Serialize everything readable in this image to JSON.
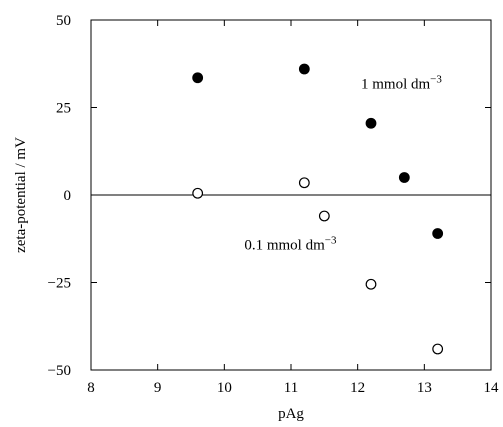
{
  "chart_data": {
    "type": "scatter",
    "title": "",
    "xlabel": "pAg",
    "ylabel": "zeta-potential / mV",
    "xlim": [
      8,
      14
    ],
    "ylim": [
      -50,
      50
    ],
    "x_ticks": [
      8,
      9,
      10,
      11,
      12,
      13,
      14
    ],
    "y_ticks": [
      -50,
      -25,
      0,
      25,
      50
    ],
    "x_tick_labels": [
      "8",
      "9",
      "10",
      "11",
      "12",
      "13",
      "14"
    ],
    "y_tick_labels": [
      "−50",
      "−25",
      "0",
      "25",
      "50"
    ],
    "zero_line": true,
    "grid": false,
    "series": [
      {
        "name": "1 mmol dm⁻³",
        "marker": "filled-circle",
        "color": "#000000",
        "points": [
          {
            "x": 9.6,
            "y": 33.5
          },
          {
            "x": 11.2,
            "y": 36
          },
          {
            "x": 12.2,
            "y": 20.5
          },
          {
            "x": 12.7,
            "y": 5
          },
          {
            "x": 13.2,
            "y": -11
          }
        ]
      },
      {
        "name": "0.1 mmol dm⁻³",
        "marker": "open-circle",
        "color": "#000000",
        "points": [
          {
            "x": 9.6,
            "y": 0.5
          },
          {
            "x": 11.2,
            "y": 3.5
          },
          {
            "x": 11.5,
            "y": -6
          },
          {
            "x": 12.2,
            "y": -25.5
          },
          {
            "x": 13.2,
            "y": -44
          }
        ]
      }
    ],
    "annotations": [
      {
        "main": "1 mmol dm",
        "sup": "−3",
        "anchor_x": 12.05,
        "anchor_y": 30.5
      },
      {
        "main": "0.1 mmol dm",
        "sup": "−3",
        "anchor_x": 10.3,
        "anchor_y": -15.5
      }
    ]
  }
}
